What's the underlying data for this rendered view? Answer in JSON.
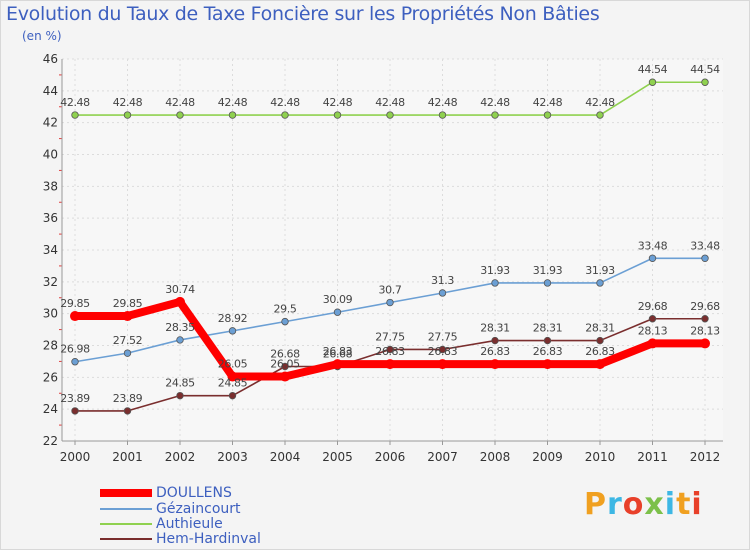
{
  "chart_data": {
    "type": "line",
    "title": "Evolution du Taux de Taxe Foncière sur les Propriétés Non Bâties",
    "ylabel": "(en %)",
    "xlabel": "",
    "categories": [
      "2000",
      "2001",
      "2002",
      "2003",
      "2004",
      "2005",
      "2006",
      "2007",
      "2008",
      "2009",
      "2010",
      "2011",
      "2012"
    ],
    "ylim": [
      22,
      46
    ],
    "yticks": [
      22,
      24,
      26,
      28,
      30,
      32,
      34,
      36,
      38,
      40,
      42,
      44,
      46
    ],
    "grid": true,
    "series": [
      {
        "name": "DOULLENS",
        "color": "#ff0000",
        "values": [
          29.85,
          29.85,
          30.74,
          26.05,
          26.05,
          26.83,
          26.83,
          26.83,
          26.83,
          26.83,
          26.83,
          28.13,
          28.13
        ],
        "labels": [
          "29.85",
          "29.85",
          "30.74",
          "26.05",
          "26.05",
          "26.83",
          "26.83",
          "26.83",
          "26.83",
          "26.83",
          "26.83",
          "28.13",
          "28.13"
        ]
      },
      {
        "name": "Gézaincourt",
        "color": "#6b9fd4",
        "values": [
          26.98,
          27.52,
          28.35,
          28.92,
          29.5,
          30.09,
          30.7,
          31.3,
          31.93,
          31.93,
          31.93,
          33.48,
          33.48
        ],
        "labels": [
          "26.98",
          "27.52",
          "28.35",
          "28.92",
          "29.5",
          "30.09",
          "30.7",
          "31.3",
          "31.93",
          "31.93",
          "31.93",
          "33.48",
          "33.48"
        ]
      },
      {
        "name": "Authieule",
        "color": "#8fd14f",
        "values": [
          42.48,
          42.48,
          42.48,
          42.48,
          42.48,
          42.48,
          42.48,
          42.48,
          42.48,
          42.48,
          42.48,
          44.54,
          44.54
        ],
        "labels": [
          "42.48",
          "42.48",
          "42.48",
          "42.48",
          "42.48",
          "42.48",
          "42.48",
          "42.48",
          "42.48",
          "42.48",
          "42.48",
          "44.54",
          "44.54"
        ]
      },
      {
        "name": "Hem-Hardinval",
        "color": "#7a2e2e",
        "values": [
          23.89,
          23.89,
          24.85,
          24.85,
          26.68,
          26.68,
          27.75,
          27.75,
          28.31,
          28.31,
          28.31,
          29.68,
          29.68
        ],
        "labels": [
          "23.89",
          "23.89",
          "24.85",
          "24.85",
          "26.68",
          "26.68",
          "27.75",
          "27.75",
          "28.31",
          "28.31",
          "28.31",
          "29.68",
          "29.68"
        ]
      }
    ]
  },
  "logo": {
    "text": "Proxiti"
  }
}
